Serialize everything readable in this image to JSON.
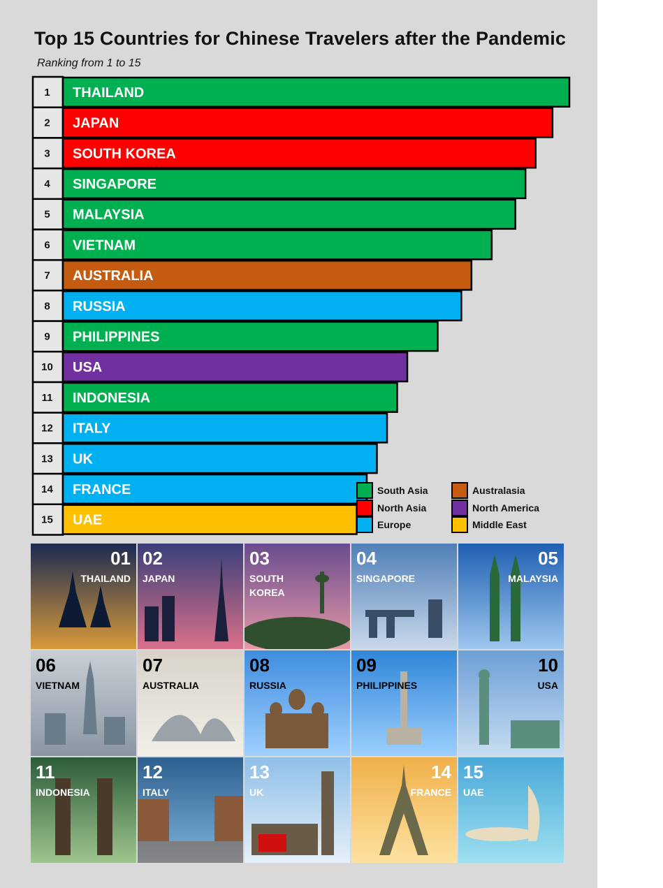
{
  "chart_data": {
    "type": "bar",
    "orientation": "horizontal",
    "title": "Top 15 Countries for Chinese Travelers after the Pandemic",
    "subtitle": "Ranking from 1 to 15",
    "ranks": [
      "1",
      "2",
      "3",
      "4",
      "5",
      "6",
      "7",
      "8",
      "9",
      "10",
      "11",
      "12",
      "13",
      "14",
      "15"
    ],
    "categories": [
      "THAILAND",
      "JAPAN",
      "SOUTH KOREA",
      "SINGAPORE",
      "MALAYSIA",
      "VIETNAM",
      "AUSTRALIA",
      "RUSSIA",
      "PHILIPPINES",
      "USA",
      "INDONESIA",
      "ITALY",
      "UK",
      "FRANCE",
      "UAE"
    ],
    "values": [
      15,
      14.5,
      14,
      13.7,
      13.4,
      12.7,
      12.1,
      11.8,
      11.1,
      10.2,
      9.9,
      9.6,
      9.3,
      9.0,
      8.7
    ],
    "regions": [
      "South Asia",
      "North Asia",
      "North Asia",
      "South Asia",
      "South Asia",
      "South Asia",
      "Australasia",
      "Europe",
      "South Asia",
      "North America",
      "South Asia",
      "Europe",
      "Europe",
      "Europe",
      "Middle East"
    ],
    "xlim": [
      0,
      15
    ],
    "grid": false,
    "legend_position": "bottom-right",
    "legend": [
      {
        "label": "South Asia",
        "color": "#00b050"
      },
      {
        "label": "North Asia",
        "color": "#ff0000"
      },
      {
        "label": "Europe",
        "color": "#00b0f0"
      },
      {
        "label": "Australasia",
        "color": "#c55a11"
      },
      {
        "label": "North America",
        "color": "#7030a0"
      },
      {
        "label": "Middle East",
        "color": "#ffc000"
      }
    ]
  },
  "photo_grid": [
    {
      "number": "01",
      "name": "THAILAND",
      "icon": "temple-photo",
      "align": "right",
      "num_color": "#ffffff",
      "name_color": "#ffffff"
    },
    {
      "number": "02",
      "name": "JAPAN",
      "icon": "tokyo-tower-photo",
      "align": "left",
      "num_color": "#ffffff",
      "name_color": "#ffffff"
    },
    {
      "number": "03",
      "name": "SOUTH KOREA",
      "icon": "seoul-tower-photo",
      "align": "left",
      "num_color": "#ffffff",
      "name_color": "#ffffff"
    },
    {
      "number": "04",
      "name": "SINGAPORE",
      "icon": "merlion-photo",
      "align": "left",
      "num_color": "#ffffff",
      "name_color": "#ffffff"
    },
    {
      "number": "05",
      "name": "MALAYSIA",
      "icon": "petronas-towers-photo",
      "align": "right",
      "num_color": "#ffffff",
      "name_color": "#ffffff"
    },
    {
      "number": "06",
      "name": "VIETNAM",
      "icon": "saigon-skyline-photo",
      "align": "left",
      "num_color": "#000000",
      "name_color": "#000000"
    },
    {
      "number": "07",
      "name": "AUSTRALIA",
      "icon": "opera-house-photo",
      "align": "left",
      "num_color": "#000000",
      "name_color": "#000000"
    },
    {
      "number": "08",
      "name": "RUSSIA",
      "icon": "st-basil-photo",
      "align": "left",
      "num_color": "#000000",
      "name_color": "#000000"
    },
    {
      "number": "09",
      "name": "PHILIPPINES",
      "icon": "rizal-monument-photo",
      "align": "left",
      "num_color": "#000000",
      "name_color": "#000000"
    },
    {
      "number": "10",
      "name": "USA",
      "icon": "statue-of-liberty-photo",
      "align": "right",
      "num_color": "#000000",
      "name_color": "#000000"
    },
    {
      "number": "11",
      "name": "INDONESIA",
      "icon": "bali-gate-photo",
      "align": "left",
      "num_color": "#ffffff",
      "name_color": "#ffffff"
    },
    {
      "number": "12",
      "name": "ITALY",
      "icon": "venice-canal-photo",
      "align": "left",
      "num_color": "#ffffff",
      "name_color": "#ffffff"
    },
    {
      "number": "13",
      "name": "UK",
      "icon": "big-ben-photo",
      "align": "left",
      "num_color": "#ffffff",
      "name_color": "#ffffff"
    },
    {
      "number": "14",
      "name": "FRANCE",
      "icon": "eiffel-tower-photo",
      "align": "right",
      "num_color": "#ffffff",
      "name_color": "#ffffff"
    },
    {
      "number": "15",
      "name": "UAE",
      "icon": "burj-al-arab-photo",
      "align": "left",
      "num_color": "#ffffff",
      "name_color": "#ffffff"
    }
  ]
}
